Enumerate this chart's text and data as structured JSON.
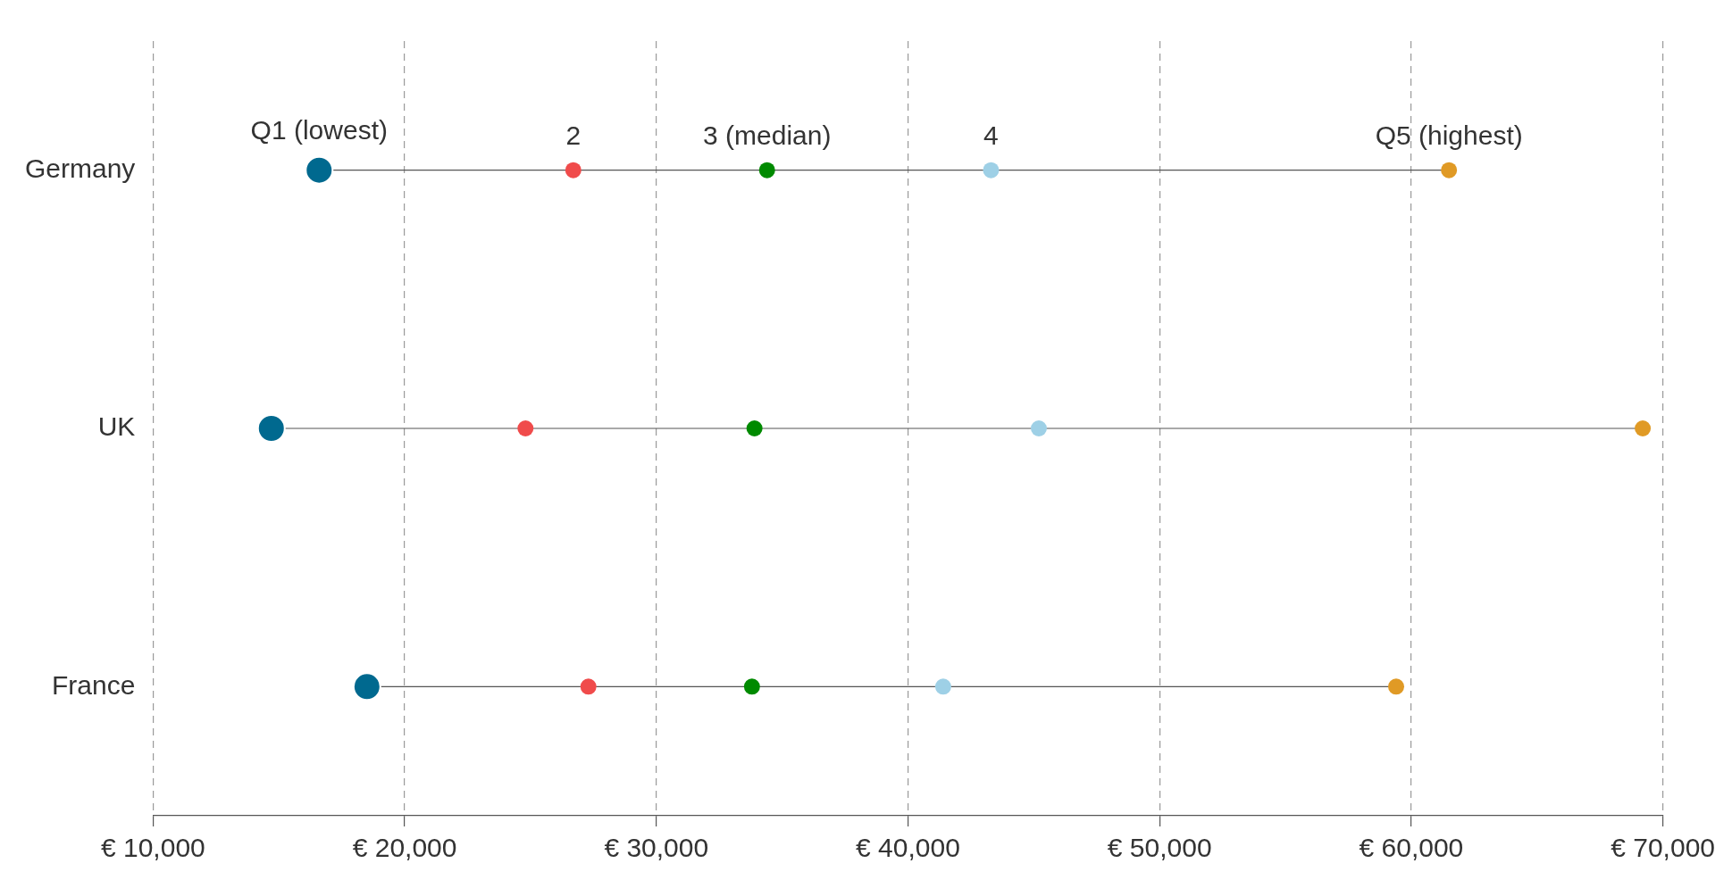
{
  "chart_data": {
    "type": "scatter",
    "orientation": "horizontal",
    "categories": [
      "Germany",
      "UK",
      "France"
    ],
    "series": [
      {
        "name": "Q1 (lowest)",
        "color": "#00698f",
        "values": [
          16600,
          14700,
          18500
        ]
      },
      {
        "name": "2",
        "color": "#f04b4b",
        "values": [
          26700,
          24800,
          27300
        ]
      },
      {
        "name": "3 (median)",
        "color": "#008a00",
        "values": [
          34400,
          33900,
          33800
        ]
      },
      {
        "name": "4",
        "color": "#9ed0e6",
        "values": [
          43300,
          45200,
          41400
        ]
      },
      {
        "name": "Q5 (highest)",
        "color": "#e09a25",
        "values": [
          61500,
          69200,
          59400
        ]
      }
    ],
    "xlim": [
      10000,
      70000
    ],
    "xticks": [
      {
        "value": 10000,
        "label": "€ 10,000"
      },
      {
        "value": 20000,
        "label": "€ 20,000"
      },
      {
        "value": 30000,
        "label": "€ 30,000"
      },
      {
        "value": 40000,
        "label": "€ 40,000"
      },
      {
        "value": 50000,
        "label": "€ 50,000"
      },
      {
        "value": 60000,
        "label": "€ 60,000"
      },
      {
        "value": 70000,
        "label": "€ 70,000"
      }
    ],
    "grid": "x",
    "legend": false,
    "marker": "circle"
  }
}
